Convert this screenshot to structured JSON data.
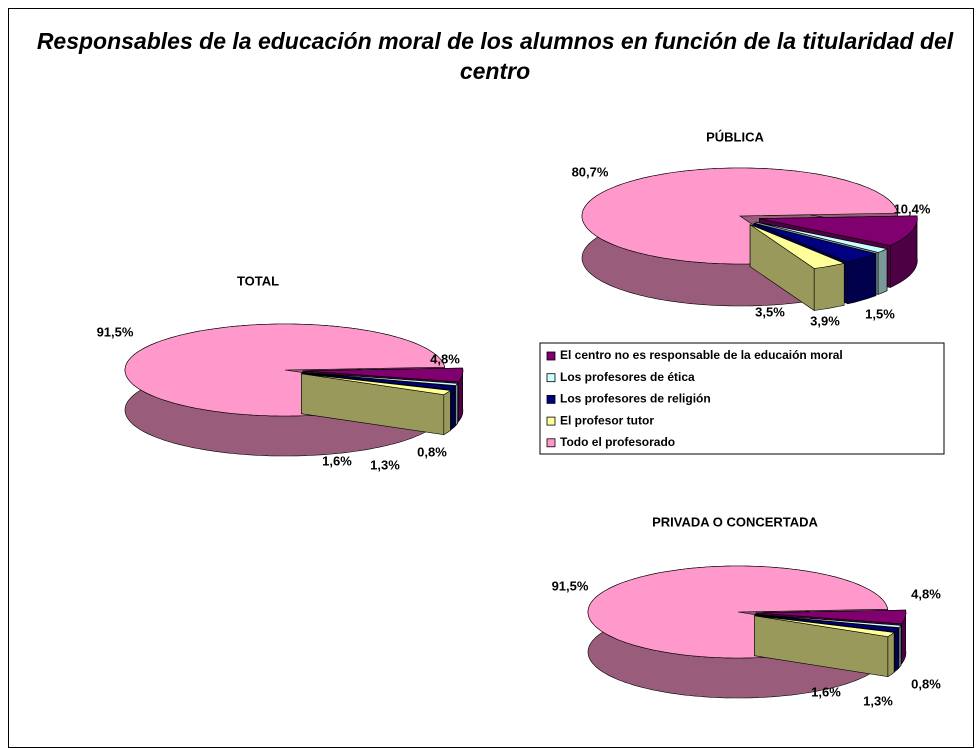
{
  "title": "Responsables de la educación moral de los alumnos en función de la titularidad del centro",
  "chart_data": [
    {
      "type": "pie",
      "title": "TOTAL",
      "categories": [
        "El centro no es responsable de la educaión moral",
        "Los profesores de ética",
        "Los profesores de religión",
        "El profesor tutor",
        "Todo el profesorado"
      ],
      "colors": [
        "#800070",
        "#ccffff",
        "#000080",
        "#ffff99",
        "#ff99cc"
      ],
      "values": [
        4.8,
        0.8,
        1.3,
        1.6,
        91.5
      ],
      "value_labels": [
        "4,8%",
        "0,8%",
        "1,3%",
        "1,6%",
        "91,5%"
      ]
    },
    {
      "type": "pie",
      "title": "PÚBLICA",
      "categories": [
        "El centro no es responsable de la educaión moral",
        "Los profesores de ética",
        "Los profesores de religión",
        "El profesor tutor",
        "Todo el profesorado"
      ],
      "colors": [
        "#800070",
        "#ccffff",
        "#000080",
        "#ffff99",
        "#ff99cc"
      ],
      "values": [
        10.4,
        1.5,
        3.9,
        3.5,
        80.7
      ],
      "value_labels": [
        "10,4%",
        "1,5%",
        "3,9%",
        "3,5%",
        "80,7%"
      ]
    },
    {
      "type": "pie",
      "title": "PRIVADA O CONCERTADA",
      "categories": [
        "El centro no es responsable de la educaión moral",
        "Los profesores de ética",
        "Los profesores de religión",
        "El profesor tutor",
        "Todo el profesorado"
      ],
      "colors": [
        "#800070",
        "#ccffff",
        "#000080",
        "#ffff99",
        "#ff99cc"
      ],
      "values": [
        4.8,
        0.8,
        1.3,
        1.6,
        91.5
      ],
      "value_labels": [
        "4,8%",
        "0,8%",
        "1,3%",
        "1,6%",
        "91,5%"
      ]
    }
  ]
}
